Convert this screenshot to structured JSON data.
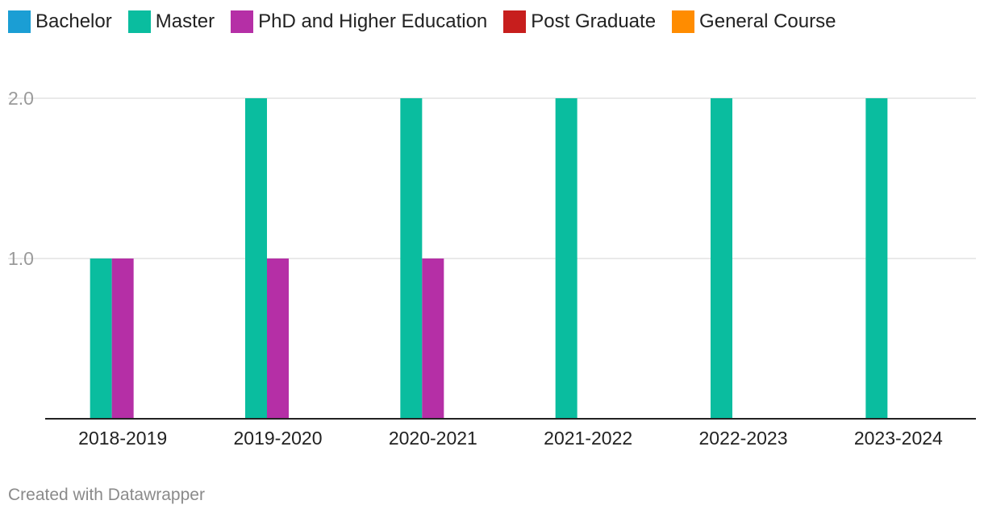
{
  "chart_data": {
    "type": "bar",
    "title": "",
    "xlabel": "",
    "ylabel": "",
    "categories": [
      "2018-2019",
      "2019-2020",
      "2020-2021",
      "2021-2022",
      "2022-2023",
      "2023-2024"
    ],
    "series": [
      {
        "name": "Bachelor",
        "color": "#1b9ed4",
        "values": [
          0,
          0,
          0,
          0,
          0,
          0
        ]
      },
      {
        "name": "Master",
        "color": "#0abd9f",
        "values": [
          1,
          2,
          2,
          2,
          2,
          2
        ]
      },
      {
        "name": "PhD and Higher Education",
        "color": "#b52fa6",
        "values": [
          1,
          1,
          1,
          0,
          0,
          0
        ]
      },
      {
        "name": "Post Graduate",
        "color": "#c71e1d",
        "values": [
          0,
          0,
          0,
          0,
          0,
          0
        ]
      },
      {
        "name": "General Course",
        "color": "#ff8c00",
        "values": [
          0,
          0,
          0,
          0,
          0,
          0
        ]
      }
    ],
    "ylim": [
      0,
      2
    ],
    "yticks": [
      "1.0",
      "2.0"
    ],
    "grid": true,
    "legend_position": "top-left"
  },
  "footer": {
    "text": "Created with Datawrapper"
  }
}
